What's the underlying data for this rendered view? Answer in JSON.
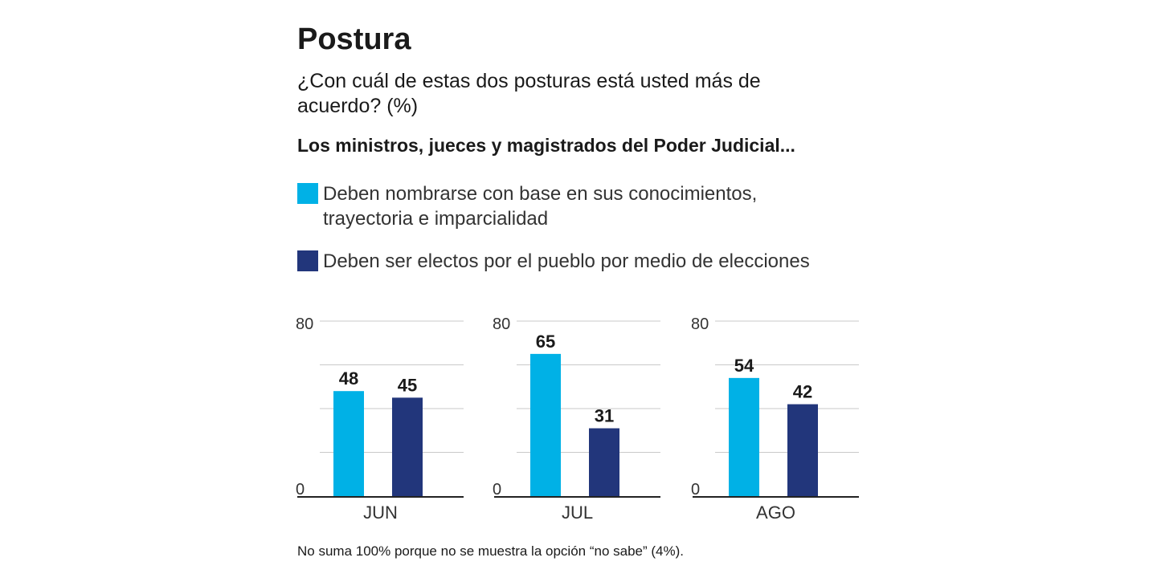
{
  "header": {
    "title": "Postura",
    "question": "¿Con cuál de estas dos posturas está usted más de acuerdo? (%)",
    "subtitle": "Los ministros, jueces y magistrados del Poder Judicial..."
  },
  "legend": [
    {
      "label": "Deben nombrarse con base en sus conocimientos, trayectoria e imparcialidad",
      "color": "#00b1e6"
    },
    {
      "label": "Deben ser electos por el pueblo por medio de elecciones",
      "color": "#22367b"
    }
  ],
  "chart_data": [
    {
      "type": "bar",
      "categories": [
        "JUN"
      ],
      "series": [
        {
          "name": "Deben nombrarse con base en sus conocimientos, trayectoria e imparcialidad",
          "values": [
            48
          ]
        },
        {
          "name": "Deben ser electos por el pueblo por medio de elecciones",
          "values": [
            45
          ]
        }
      ],
      "ylim": [
        0,
        80
      ],
      "yticks": [
        "80",
        "0"
      ],
      "grid": true
    },
    {
      "type": "bar",
      "categories": [
        "JUL"
      ],
      "series": [
        {
          "name": "Deben nombrarse con base en sus conocimientos, trayectoria e imparcialidad",
          "values": [
            65
          ]
        },
        {
          "name": "Deben ser electos por el pueblo por medio de elecciones",
          "values": [
            31
          ]
        }
      ],
      "ylim": [
        0,
        80
      ],
      "yticks": [
        "80",
        "0"
      ],
      "grid": true
    },
    {
      "type": "bar",
      "categories": [
        "AGO"
      ],
      "series": [
        {
          "name": "Deben nombrarse con base en sus conocimientos, trayectoria e imparcialidad",
          "values": [
            54
          ]
        },
        {
          "name": "Deben ser electos por el pueblo por medio de elecciones",
          "values": [
            42
          ]
        }
      ],
      "ylim": [
        0,
        80
      ],
      "yticks": [
        "80",
        "0"
      ],
      "grid": true
    }
  ],
  "footnote": "No suma 100% porque no se muestra la opción “no sabe” (4%)."
}
